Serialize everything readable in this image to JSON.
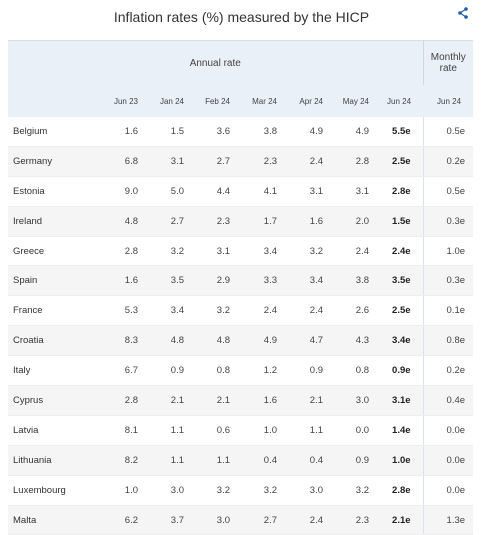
{
  "title": "Inflation rates (%) measured by the HICP",
  "share_icon": "share-icon",
  "header": {
    "annual_label": "Annual rate",
    "monthly_label": "Monthly rate",
    "columns": [
      "Jun 23",
      "Jan 24",
      "Feb 24",
      "Mar 24",
      "Apr 24",
      "May 24",
      "Jun 24",
      "Jun 24"
    ]
  },
  "rows": [
    {
      "country": "Belgium",
      "values": [
        "1.6",
        "1.5",
        "3.6",
        "3.8",
        "4.9",
        "4.9",
        "5.5e",
        "0.5e"
      ]
    },
    {
      "country": "Germany",
      "values": [
        "6.8",
        "3.1",
        "2.7",
        "2.3",
        "2.4",
        "2.8",
        "2.5e",
        "0.2e"
      ]
    },
    {
      "country": "Estonia",
      "values": [
        "9.0",
        "5.0",
        "4.4",
        "4.1",
        "3.1",
        "3.1",
        "2.8e",
        "0.5e"
      ]
    },
    {
      "country": "Ireland",
      "values": [
        "4.8",
        "2.7",
        "2.3",
        "1.7",
        "1.6",
        "2.0",
        "1.5e",
        "0.3e"
      ]
    },
    {
      "country": "Greece",
      "values": [
        "2.8",
        "3.2",
        "3.1",
        "3.4",
        "3.2",
        "2.4",
        "2.4e",
        "1.0e"
      ]
    },
    {
      "country": "Spain",
      "values": [
        "1.6",
        "3.5",
        "2.9",
        "3.3",
        "3.4",
        "3.8",
        "3.5e",
        "0.3e"
      ]
    },
    {
      "country": "France",
      "values": [
        "5.3",
        "3.4",
        "3.2",
        "2.4",
        "2.4",
        "2.6",
        "2.5e",
        "0.1e"
      ]
    },
    {
      "country": "Croatia",
      "values": [
        "8.3",
        "4.8",
        "4.8",
        "4.9",
        "4.7",
        "4.3",
        "3.4e",
        "0.8e"
      ]
    },
    {
      "country": "Italy",
      "values": [
        "6.7",
        "0.9",
        "0.8",
        "1.2",
        "0.9",
        "0.8",
        "0.9e",
        "0.2e"
      ]
    },
    {
      "country": "Cyprus",
      "values": [
        "2.8",
        "2.1",
        "2.1",
        "1.6",
        "2.1",
        "3.0",
        "3.1e",
        "0.4e"
      ]
    },
    {
      "country": "Latvia",
      "values": [
        "8.1",
        "1.1",
        "0.6",
        "1.0",
        "1.1",
        "0.0",
        "1.4e",
        "0.0e"
      ]
    },
    {
      "country": "Lithuania",
      "values": [
        "8.2",
        "1.1",
        "1.1",
        "0.4",
        "0.4",
        "0.9",
        "1.0e",
        "0.0e"
      ]
    },
    {
      "country": "Luxembourg",
      "values": [
        "1.0",
        "3.0",
        "3.2",
        "3.2",
        "3.0",
        "3.2",
        "2.8e",
        "0.0e"
      ]
    },
    {
      "country": "Malta",
      "values": [
        "6.2",
        "3.7",
        "3.0",
        "2.7",
        "2.4",
        "2.3",
        "2.1e",
        "1.3e"
      ]
    }
  ]
}
